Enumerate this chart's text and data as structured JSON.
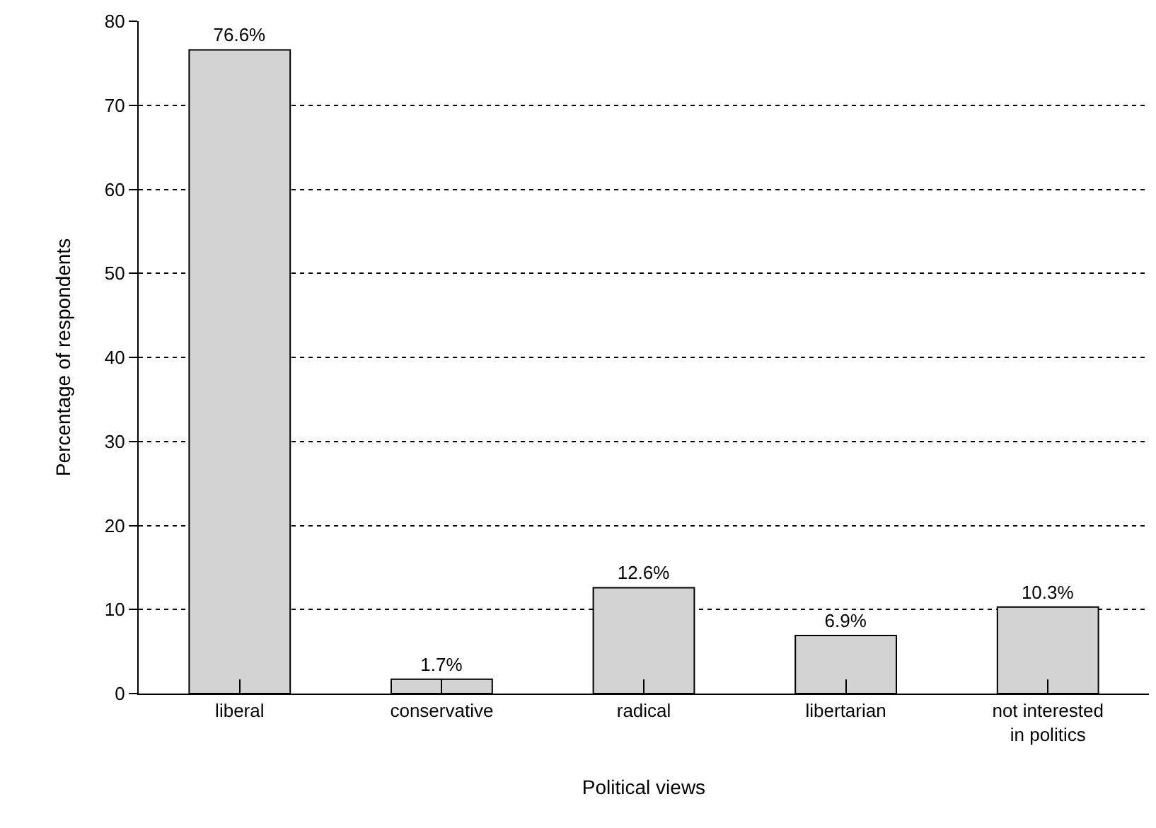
{
  "chart_data": {
    "type": "bar",
    "xlabel": "Political views",
    "ylabel": "Percentage of respondents",
    "categories": [
      "liberal",
      "conservative",
      "radical",
      "libertarian",
      "not interested in politics"
    ],
    "values": [
      76.6,
      1.7,
      12.6,
      6.9,
      10.3
    ],
    "value_labels": [
      "76.6%",
      "1.7%",
      "12.6%",
      "6.9%",
      "10.3%"
    ],
    "color": "#d3d3d3",
    "ylim": [
      0,
      80
    ],
    "yticks": [
      0,
      10,
      20,
      30,
      40,
      50,
      60,
      70,
      80
    ],
    "grid": "y",
    "legend": false
  }
}
